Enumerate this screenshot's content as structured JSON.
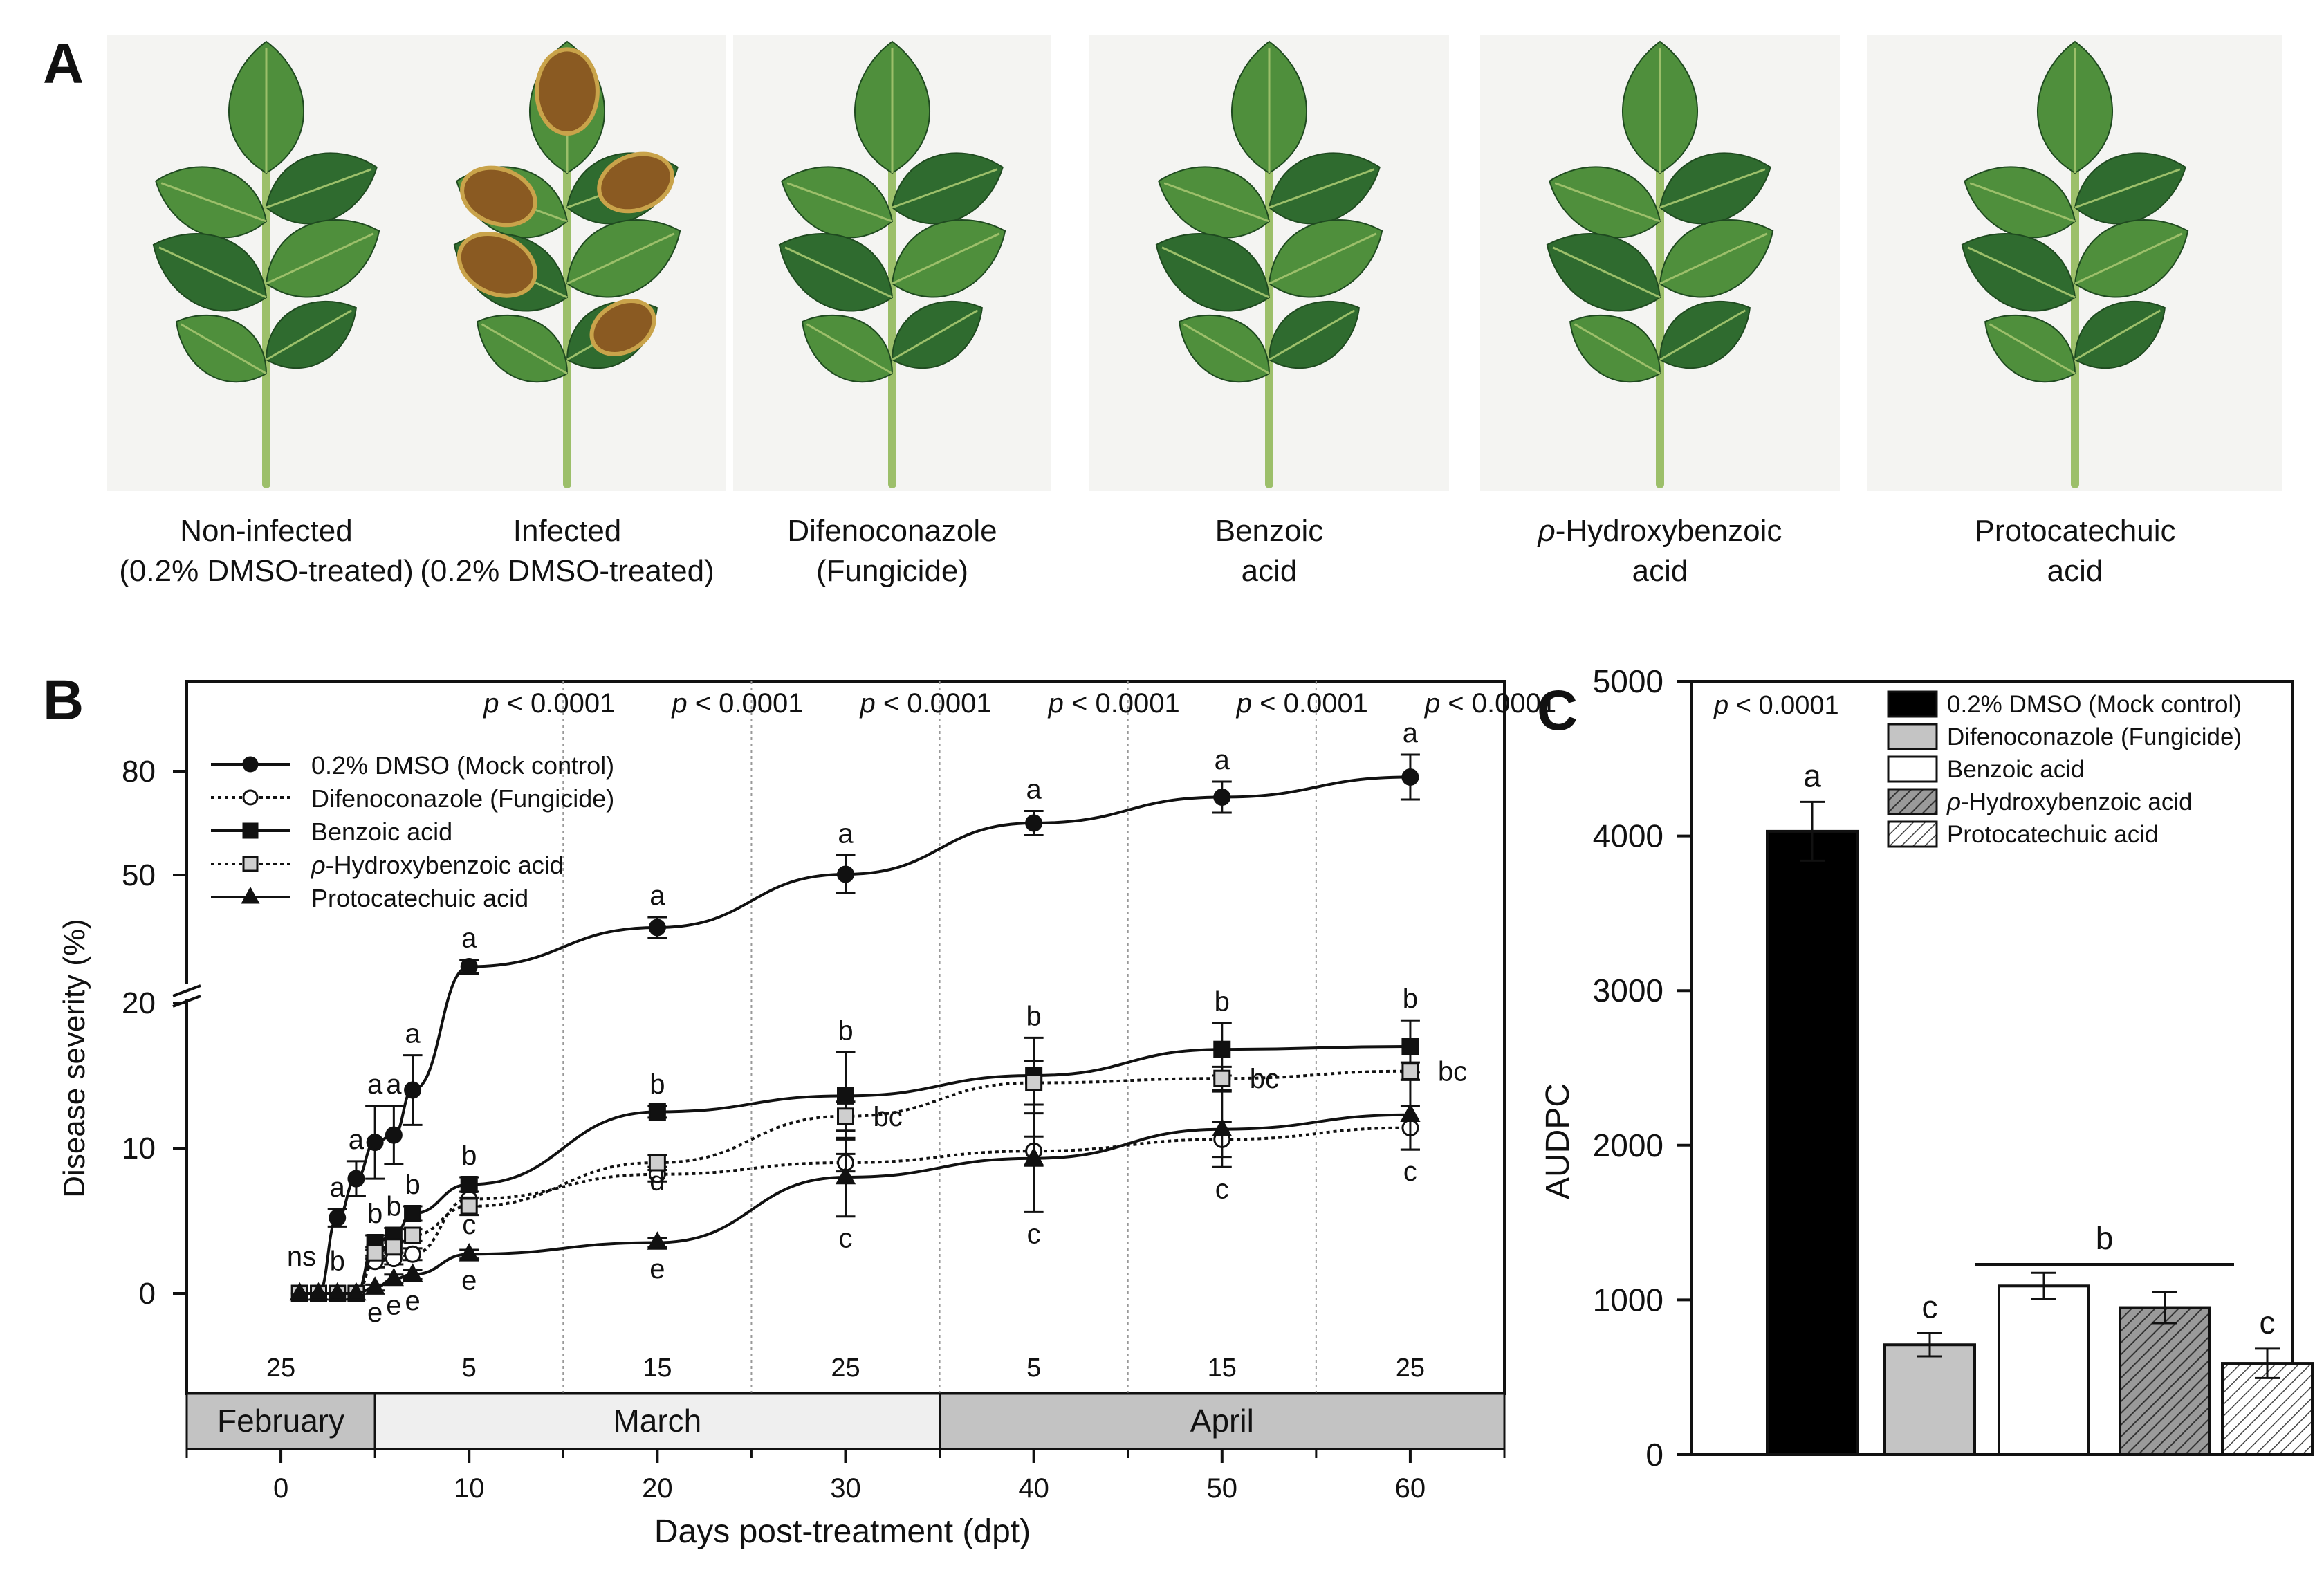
{
  "panel_a": {
    "label": "A",
    "leaves": [
      {
        "line1": "Non-infected",
        "line2": "(0.2% DMSO-treated)",
        "italic_prefix": "",
        "infected": false
      },
      {
        "line1": "Infected",
        "line2": "(0.2% DMSO-treated)",
        "italic_prefix": "",
        "infected": true
      },
      {
        "line1": "Difenoconazole",
        "line2": "(Fungicide)",
        "italic_prefix": "",
        "infected": false
      },
      {
        "line1": "Benzoic",
        "line2": "acid",
        "italic_prefix": "",
        "infected": false
      },
      {
        "line1": "-Hydroxybenzoic",
        "line2": "acid",
        "italic_prefix": "ρ",
        "infected": false
      },
      {
        "line1": "Protocatechuic",
        "line2": "acid",
        "italic_prefix": "",
        "infected": false
      }
    ],
    "colors": {
      "leaf": "#2f6b2f",
      "leaf_light": "#4f8f3c",
      "stem": "#9cbf6a",
      "lesion": "#8a5a22",
      "lesion_edge": "#c9a34a"
    }
  },
  "chart_data": [
    {
      "panel": "B",
      "type": "line",
      "xlabel": "Days post-treatment (dpt)",
      "ylabel": "Disease severity (%)",
      "xlim": [
        -5,
        65
      ],
      "x_ticks": [
        "0",
        "10",
        "20",
        "30",
        "40",
        "50",
        "60"
      ],
      "y_ticks": [
        "0",
        "10",
        "20",
        "50",
        "80"
      ],
      "y_axis_break": {
        "lower_range": [
          0,
          20
        ],
        "upper_range": [
          20,
          80
        ]
      },
      "grid": "vertical dotted lines every 10 dpt from 15",
      "pvalue_prefix": "p",
      "pvalue_rest": " < 0.0001",
      "pvalue_x": [
        15,
        25,
        35,
        45,
        55,
        65
      ],
      "date_labels": [
        {
          "x": 0,
          "label": "25"
        },
        {
          "x": 10,
          "label": "5"
        },
        {
          "x": 20,
          "label": "15"
        },
        {
          "x": 30,
          "label": "25"
        },
        {
          "x": 40,
          "label": "5"
        },
        {
          "x": 50,
          "label": "15"
        },
        {
          "x": 60,
          "label": "25"
        }
      ],
      "months": [
        {
          "label": "February",
          "from": -5,
          "to": 5,
          "color": "#c3c3c3"
        },
        {
          "label": "March",
          "from": 5,
          "to": 35,
          "color": "#efefef"
        },
        {
          "label": "April",
          "from": 35,
          "to": 65,
          "color": "#c3c3c3"
        }
      ],
      "legend_position": "top-left",
      "series": [
        {
          "name": "0.2% DMSO (Mock control)",
          "marker": "circle",
          "fill": "#111111",
          "dash": "",
          "x": [
            1,
            2,
            3,
            4,
            5,
            6,
            7,
            10,
            20,
            30,
            40,
            50,
            60
          ],
          "y": [
            0,
            0,
            5.2,
            7.9,
            10.4,
            10.9,
            14.0,
            23.5,
            34.8,
            50.2,
            65.0,
            72.5,
            78.3
          ],
          "err": [
            0,
            0,
            0.6,
            1.2,
            2.5,
            2.0,
            2.4,
            2.0,
            3.0,
            5.5,
            3.5,
            4.5,
            6.5
          ],
          "labels": [
            "",
            "",
            "a",
            "a",
            "a",
            "a",
            "a",
            "a",
            "a",
            "a",
            "a",
            "a",
            "a"
          ]
        },
        {
          "name": "Difenoconazole (Fungicide)",
          "marker": "circle",
          "fill": "#ffffff",
          "dash": "5,5",
          "x": [
            1,
            2,
            3,
            4,
            5,
            6,
            7,
            10,
            20,
            30,
            40,
            50,
            60
          ],
          "y": [
            0,
            0,
            0,
            0,
            2.2,
            2.4,
            2.7,
            6.5,
            8.2,
            9.0,
            9.8,
            10.6,
            11.4
          ],
          "err": [
            0,
            0,
            0,
            0,
            0.4,
            0.4,
            0.4,
            0.5,
            0.5,
            0.6,
            1.0,
            1.2,
            1.5
          ],
          "labels": [
            "",
            "",
            "",
            "",
            "",
            "",
            "",
            "",
            "",
            "",
            "",
            "",
            ""
          ]
        },
        {
          "name": "Benzoic acid",
          "marker": "square",
          "fill": "#111111",
          "dash": "",
          "x": [
            1,
            2,
            3,
            4,
            5,
            6,
            7,
            10,
            20,
            30,
            40,
            50,
            60
          ],
          "y": [
            0,
            0,
            0,
            0,
            3.5,
            4.0,
            5.5,
            7.5,
            12.5,
            13.6,
            15.0,
            16.8,
            17.0
          ],
          "err": [
            0,
            0,
            0,
            0,
            0.5,
            0.5,
            0.5,
            0.5,
            0.4,
            3.0,
            2.6,
            1.8,
            1.8
          ],
          "labels": [
            "",
            "",
            "",
            "",
            "b",
            "b",
            "b",
            "b",
            "b",
            "b",
            "b",
            "b",
            "b"
          ]
        },
        {
          "name": "ρ-Hydroxybenzoic acid",
          "marker": "square",
          "fill": "#cfcfcf",
          "dash": "5,5",
          "x": [
            1,
            2,
            3,
            4,
            5,
            6,
            7,
            10,
            20,
            30,
            40,
            50,
            60
          ],
          "y": [
            0,
            0,
            0,
            0,
            2.8,
            3.2,
            4.0,
            6.0,
            9.0,
            12.2,
            14.5,
            14.8,
            15.3
          ],
          "err": [
            0,
            0,
            0,
            0,
            0.4,
            0.4,
            0.4,
            0.6,
            0.5,
            1.0,
            1.5,
            0.8,
            0.6
          ],
          "labels": [
            "",
            "",
            "",
            "",
            "",
            "",
            "",
            "c",
            "d",
            "bc",
            "",
            "bc",
            "bc"
          ]
        },
        {
          "name": "Protocatechuic acid",
          "marker": "triangle",
          "fill": "#111111",
          "dash": "",
          "x": [
            1,
            2,
            3,
            4,
            5,
            6,
            7,
            10,
            20,
            30,
            40,
            50,
            60
          ],
          "y": [
            0,
            0,
            0,
            0,
            0.4,
            1.0,
            1.3,
            2.7,
            3.5,
            8.0,
            9.3,
            11.3,
            12.3
          ],
          "err": [
            0,
            0,
            0,
            0,
            0.2,
            0.3,
            0.3,
            0.3,
            0.3,
            2.7,
            3.7,
            2.6,
            2.4
          ],
          "labels": [
            "",
            "",
            "",
            "",
            "e",
            "e",
            "e",
            "e",
            "e",
            "c",
            "c",
            "c",
            "c"
          ]
        }
      ],
      "extra_annotations": [
        {
          "text": "ns",
          "x": 1.1,
          "y": 1.9
        },
        {
          "text": "b",
          "x": 3.0,
          "y": 1.6
        }
      ]
    },
    {
      "panel": "C",
      "type": "bar",
      "ylabel": "AUDPC",
      "ylim": [
        0,
        5000
      ],
      "y_ticks": [
        "0",
        "1000",
        "2000",
        "3000",
        "4000",
        "5000"
      ],
      "pvalue_prefix": "p",
      "pvalue_rest": " < 0.0001",
      "categories": [
        "0.2% DMSO (Mock control)",
        "Difenoconazole (Fungicide)",
        "Benzoic acid",
        "ρ-Hydroxybenzoic acid",
        "Protocatechuic acid"
      ],
      "values": [
        4030,
        710,
        1090,
        950,
        590
      ],
      "errors": [
        190,
        75,
        85,
        100,
        95
      ],
      "letters": [
        "a",
        "c",
        "",
        "",
        "c"
      ],
      "group_label": {
        "text": "b",
        "from": 2,
        "to": 3
      },
      "fills": [
        "#000000",
        "#c4c4c4",
        "#ffffff",
        "hatch-dark",
        "hatch-light"
      ],
      "legend_position": "top-right"
    }
  ]
}
